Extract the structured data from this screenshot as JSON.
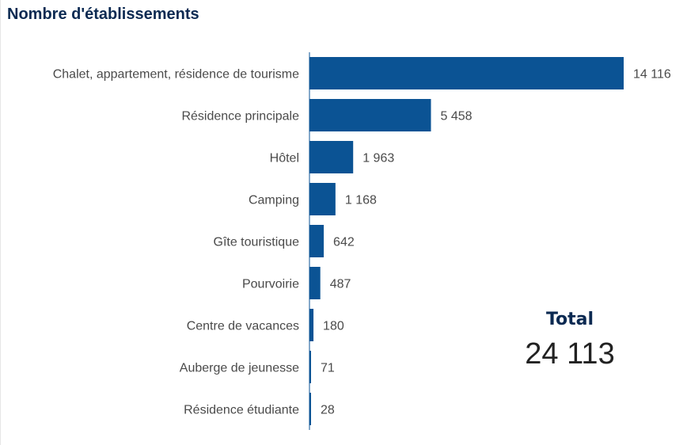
{
  "title": "Nombre d'établissements",
  "total": {
    "label": "Total",
    "value": "24 113"
  },
  "colors": {
    "bar": "#0b5394",
    "title": "#0c2a52"
  },
  "chart_data": {
    "type": "bar",
    "orientation": "horizontal",
    "categories": [
      "Chalet, appartement, résidence de tourisme",
      "Résidence principale",
      "Hôtel",
      "Camping",
      "Gîte touristique",
      "Pourvoirie",
      "Centre de vacances",
      "Auberge de jeunesse",
      "Résidence étudiante"
    ],
    "values": [
      14116,
      5458,
      1963,
      1168,
      642,
      487,
      180,
      71,
      28
    ],
    "value_labels": [
      "14 116",
      "5 458",
      "1 963",
      "1 168",
      "642",
      "487",
      "180",
      "71",
      "28"
    ],
    "title": "Nombre d'établissements",
    "xlabel": "",
    "ylabel": "",
    "xlim": [
      0,
      14116
    ],
    "grid": false,
    "legend": "none"
  }
}
